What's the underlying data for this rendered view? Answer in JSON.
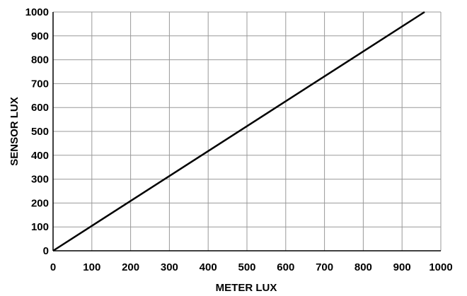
{
  "chart_data": {
    "type": "line",
    "title": "",
    "xlabel": "METER LUX",
    "ylabel": "SENSOR LUX",
    "xlim": [
      0,
      1000
    ],
    "ylim": [
      0,
      1000
    ],
    "grid": true,
    "x_ticks": [
      0,
      100,
      200,
      300,
      400,
      500,
      600,
      700,
      800,
      900,
      1000
    ],
    "y_ticks": [
      0,
      100,
      200,
      300,
      400,
      500,
      600,
      700,
      800,
      900,
      1000
    ],
    "x_tick_labels": [
      "0",
      "100",
      "200",
      "300",
      "400",
      "500",
      "600",
      "700",
      "800",
      "900",
      "1000"
    ],
    "y_tick_labels": [
      "0",
      "100",
      "200",
      "300",
      "400",
      "500",
      "600",
      "700",
      "800",
      "900",
      "1000"
    ],
    "series": [
      {
        "color": "#000000",
        "x": [
          0,
          958
        ],
        "y": [
          0,
          1000
        ]
      }
    ]
  }
}
